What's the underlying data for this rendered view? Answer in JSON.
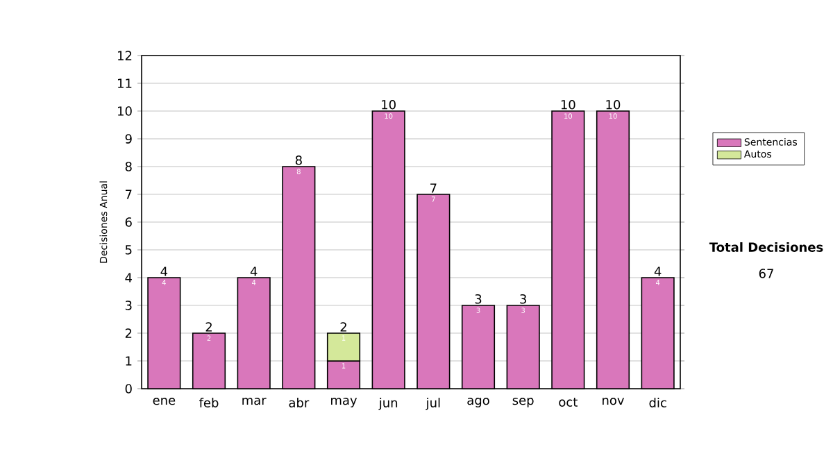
{
  "chart_data": {
    "type": "bar",
    "stacked": true,
    "ylabel": "Decisiones Anual",
    "categories": [
      "ene",
      "feb",
      "mar",
      "abr",
      "may",
      "jun",
      "jul",
      "ago",
      "sep",
      "oct",
      "nov",
      "dic"
    ],
    "series": [
      {
        "name": "Sentencias",
        "color": "#d977bb",
        "values": [
          4,
          2,
          4,
          8,
          1,
          10,
          7,
          3,
          3,
          10,
          10,
          4
        ]
      },
      {
        "name": "Autos",
        "color": "#d4e89a",
        "values": [
          null,
          null,
          null,
          null,
          1,
          null,
          null,
          null,
          null,
          null,
          null,
          null
        ]
      }
    ],
    "totals": [
      "4",
      "2",
      "4",
      "8",
      "2",
      "10",
      "7",
      "3",
      "3",
      "10",
      "10",
      "4"
    ],
    "data_labels": true,
    "ylim": [
      0,
      12
    ],
    "yticks": [
      0,
      1,
      2,
      3,
      4,
      5,
      6,
      7,
      8,
      9,
      10,
      11,
      12
    ],
    "grid": "y",
    "legend": "right",
    "annotations": [
      "Total Decisiones",
      "67"
    ]
  }
}
